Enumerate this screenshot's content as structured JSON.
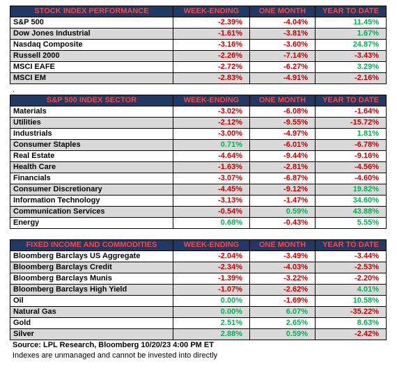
{
  "tables": [
    {
      "header": [
        "STOCK INDEX PERFORMANCE",
        "WEEK-ENDING",
        "ONE MONTH",
        "YEAR TO DATE"
      ],
      "rows": [
        [
          "S&P 500",
          "-2.39%",
          "-4.04%",
          "11.45%"
        ],
        [
          "Dow Jones Industrial",
          "-1.61%",
          "-3.81%",
          "1.67%"
        ],
        [
          "Nasdaq Composite",
          "-3.16%",
          "-3.60%",
          "24.87%"
        ],
        [
          "Russell 2000",
          "-2.26%",
          "-7.14%",
          "-3.43%"
        ],
        [
          "MSCI EAFE",
          "-2.72%",
          "-6.27%",
          "3.29%"
        ],
        [
          "MSCI EM",
          "-2.83%",
          "-4.91%",
          "-2.16%"
        ]
      ]
    },
    {
      "header": [
        "S&P 500 INDEX SECTOR",
        "WEEK-ENDING",
        "ONE MONTH",
        "YEAR TO DATE"
      ],
      "rows": [
        [
          "Materials",
          "-3.02%",
          "-6.08%",
          "-1.64%"
        ],
        [
          "Utilities",
          "-2.12%",
          "-9.55%",
          "-15.72%"
        ],
        [
          "Industrials",
          "-3.00%",
          "-4.97%",
          "1.81%"
        ],
        [
          "Consumer Staples",
          "0.71%",
          "-6.01%",
          "-6.78%"
        ],
        [
          "Real Estate",
          "-4.64%",
          "-9.44%",
          "-9.16%"
        ],
        [
          "Health Care",
          "-1.63%",
          "-2.81%",
          "-4.56%"
        ],
        [
          "Financials",
          "-3.07%",
          "-6.87%",
          "-4.60%"
        ],
        [
          "Consumer Discretionary",
          "-4.45%",
          "-9.12%",
          "19.82%"
        ],
        [
          "Information Technology",
          "-3.13%",
          "-1.47%",
          "34.60%"
        ],
        [
          "Communication Services",
          "-0.54%",
          "0.59%",
          "43.88%"
        ],
        [
          "Energy",
          "0.68%",
          "-0.43%",
          "5.55%"
        ]
      ]
    },
    {
      "header": [
        "FIXED INCOME AND COMMODITIES",
        "WEEK-ENDING",
        "ONE MONTH",
        "YEAR TO DATE"
      ],
      "rows": [
        [
          "Bloomberg Barclays US Aggregate",
          "-2.04%",
          "-3.49%",
          "-3.44%"
        ],
        [
          "Bloomberg Barclays Credit",
          "-2.34%",
          "-4.03%",
          "-2.53%"
        ],
        [
          "Bloomberg Barclays Munis",
          "-1.39%",
          "-3.22%",
          "-2.20%"
        ],
        [
          "Bloomberg Barclays High Yield",
          "-1.07%",
          "-2.62%",
          "4.01%"
        ],
        [
          "Oil",
          "0.00%",
          "-1.69%",
          "10.58%"
        ],
        [
          "Natural Gas",
          "0.00%",
          "6.07%",
          "-35.22%"
        ],
        [
          "Gold",
          "2.51%",
          "2.65%",
          "8.63%"
        ],
        [
          "Silver",
          "2.88%",
          "0.59%",
          "-2.42%"
        ]
      ]
    }
  ],
  "separator": ".",
  "source": "Source: LPL Research, Bloomberg 10/20/23 4:00 PM ET",
  "note": "Indexes are unmanaged and cannot be invested into directly"
}
